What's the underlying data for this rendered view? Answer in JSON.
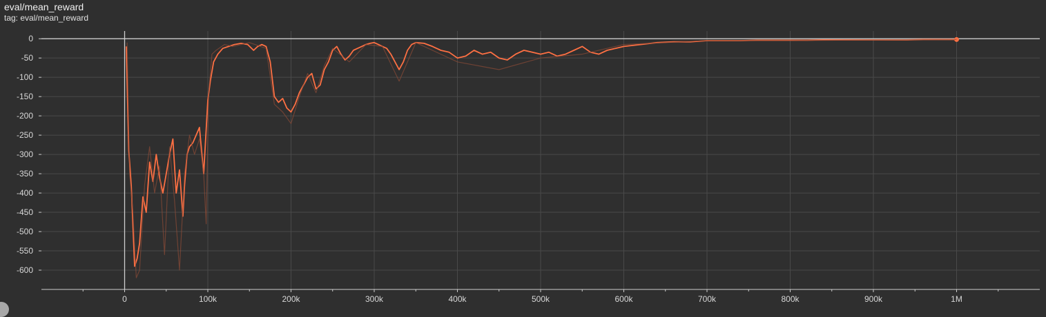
{
  "header": {
    "title": "eval/mean_reward",
    "tag": "tag: eval/mean_reward"
  },
  "chart_data": {
    "type": "line",
    "title": "eval/mean_reward",
    "xlabel": "",
    "ylabel": "",
    "xlim": [
      -100000,
      1100000
    ],
    "ylim": [
      -650,
      20
    ],
    "grid": true,
    "legend": "none",
    "x_ticks": [
      0,
      100000,
      200000,
      300000,
      400000,
      500000,
      600000,
      700000,
      800000,
      900000,
      1000000
    ],
    "x_tick_labels": [
      "0",
      "100k",
      "200k",
      "300k",
      "400k",
      "500k",
      "600k",
      "700k",
      "800k",
      "900k",
      "1M"
    ],
    "y_ticks": [
      0,
      -50,
      -100,
      -150,
      -200,
      -250,
      -300,
      -350,
      -400,
      -450,
      -500,
      -550,
      -600
    ],
    "y_tick_labels": [
      "0",
      "-50",
      "-100",
      "-150",
      "-200",
      "-250",
      "-300",
      "-350",
      "-400",
      "-450",
      "-500",
      "-550",
      "-600"
    ],
    "colors": {
      "smoothed": "#ff7043",
      "raw": "#8a4a36",
      "grid": "#4a4a4a",
      "axis": "#cfcfcf"
    },
    "series": [
      {
        "role": "smoothed",
        "x": [
          2000,
          5000,
          8000,
          12000,
          15000,
          18000,
          22000,
          26000,
          30000,
          34000,
          38000,
          42000,
          46000,
          50000,
          54000,
          58000,
          62000,
          66000,
          70000,
          72000,
          75000,
          78000,
          82000,
          86000,
          90000,
          95000,
          100000,
          103000,
          107000,
          112000,
          118000,
          125000,
          132000,
          140000,
          148000,
          155000,
          160000,
          165000,
          170000,
          175000,
          180000,
          185000,
          190000,
          195000,
          200000,
          205000,
          210000,
          215000,
          220000,
          225000,
          230000,
          235000,
          240000,
          245000,
          250000,
          255000,
          260000,
          265000,
          270000,
          275000,
          280000,
          285000,
          290000,
          295000,
          300000,
          305000,
          310000,
          315000,
          320000,
          325000,
          330000,
          335000,
          340000,
          345000,
          350000,
          360000,
          370000,
          380000,
          390000,
          400000,
          410000,
          420000,
          430000,
          440000,
          450000,
          460000,
          470000,
          480000,
          490000,
          500000,
          510000,
          520000,
          530000,
          540000,
          550000,
          560000,
          570000,
          580000,
          590000,
          600000,
          620000,
          640000,
          660000,
          680000,
          700000,
          720000,
          740000,
          760000,
          780000,
          800000,
          820000,
          840000,
          860000,
          880000,
          900000,
          920000,
          940000,
          960000,
          980000,
          1000000
        ],
        "y": [
          -20,
          -290,
          -380,
          -590,
          -570,
          -530,
          -410,
          -450,
          -320,
          -370,
          -300,
          -360,
          -400,
          -350,
          -300,
          -260,
          -400,
          -340,
          -460,
          -380,
          -300,
          -280,
          -270,
          -250,
          -230,
          -350,
          -160,
          -110,
          -60,
          -40,
          -25,
          -20,
          -15,
          -12,
          -15,
          -30,
          -20,
          -15,
          -20,
          -60,
          -150,
          -165,
          -155,
          -180,
          -190,
          -170,
          -140,
          -120,
          -100,
          -90,
          -130,
          -120,
          -80,
          -60,
          -30,
          -20,
          -40,
          -55,
          -45,
          -30,
          -25,
          -20,
          -15,
          -12,
          -10,
          -15,
          -20,
          -25,
          -40,
          -60,
          -80,
          -60,
          -30,
          -15,
          -10,
          -12,
          -20,
          -30,
          -35,
          -50,
          -45,
          -30,
          -40,
          -35,
          -50,
          -55,
          -40,
          -30,
          -35,
          -40,
          -35,
          -45,
          -40,
          -30,
          -20,
          -35,
          -40,
          -30,
          -25,
          -20,
          -15,
          -10,
          -8,
          -8,
          -5,
          -5,
          -5,
          -4,
          -4,
          -4,
          -4,
          -3,
          -3,
          -3,
          -3,
          -3,
          -3,
          -2,
          -2,
          -2
        ]
      },
      {
        "role": "raw",
        "x": [
          3000,
          6000,
          10000,
          14000,
          18000,
          24000,
          30000,
          36000,
          42000,
          48000,
          54000,
          60000,
          66000,
          72000,
          78000,
          84000,
          90000,
          95000,
          98000,
          101000,
          105000,
          110000,
          120000,
          130000,
          150000,
          170000,
          180000,
          190000,
          200000,
          210000,
          220000,
          230000,
          240000,
          250000,
          270000,
          290000,
          310000,
          330000,
          350000,
          400000,
          450000,
          500000,
          550000,
          600000,
          700000,
          800000,
          900000,
          1000000
        ],
        "y": [
          -10,
          -350,
          -450,
          -620,
          -600,
          -380,
          -280,
          -400,
          -330,
          -560,
          -280,
          -420,
          -600,
          -350,
          -250,
          -300,
          -260,
          -350,
          -480,
          -140,
          -40,
          -30,
          -15,
          -20,
          -10,
          -25,
          -170,
          -190,
          -220,
          -150,
          -90,
          -140,
          -70,
          -25,
          -60,
          -15,
          -20,
          -110,
          -10,
          -60,
          -80,
          -50,
          -40,
          -15,
          -5,
          -5,
          -3,
          -2
        ]
      }
    ]
  }
}
